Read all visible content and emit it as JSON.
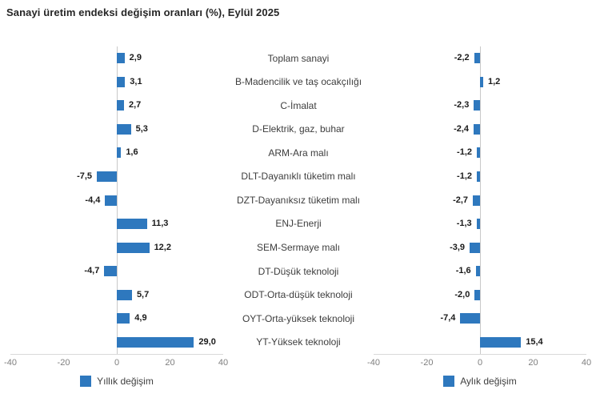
{
  "page": {
    "title": "Sanayi üretim endeksi değişim oranları (%), Eylül 2025"
  },
  "chart_data": {
    "type": "bar",
    "orientation": "horizontal",
    "title": "Sanayi üretim endeksi değişim oranları (%), Eylül 2025",
    "categories": [
      "Toplam sanayi",
      "B-Madencilik ve taş ocakçılığı",
      "C-İmalat",
      "D-Elektrik, gaz, buhar",
      "ARM-Ara malı",
      "DLT-Dayanıklı tüketim malı",
      "DZT-Dayanıksız tüketim malı",
      "ENJ-Enerji",
      "SEM-Sermaye malı",
      "DT-Düşük teknoloji",
      "ODT-Orta-düşük teknoloji",
      "OYT-Orta-yüksek teknoloji",
      "YT-Yüksek teknoloji"
    ],
    "series": [
      {
        "name": "Yıllık değişim",
        "values": [
          2.9,
          3.1,
          2.7,
          5.3,
          1.6,
          -7.5,
          -4.4,
          11.3,
          12.2,
          -4.7,
          5.7,
          4.9,
          29.0
        ]
      },
      {
        "name": "Aylık değişim",
        "values": [
          -2.2,
          1.2,
          -2.3,
          -2.4,
          -1.2,
          -1.2,
          -2.7,
          -1.3,
          -3.9,
          -1.6,
          -2.0,
          -7.4,
          15.4
        ]
      }
    ],
    "xlim": [
      -40,
      40
    ],
    "xticks": [
      -40,
      -20,
      0,
      20,
      40
    ],
    "decimal_separator": ",",
    "grid": false,
    "legend_position": "bottom",
    "colors": {
      "bar": "#2e78be",
      "value_label": "#1a1a1a",
      "tick_label": "#7f7f7f",
      "category_label": "#3d3d3d",
      "axis_line": "#d9d9d9",
      "zero_line": "#c9c9c9",
      "title": "#262626"
    }
  }
}
